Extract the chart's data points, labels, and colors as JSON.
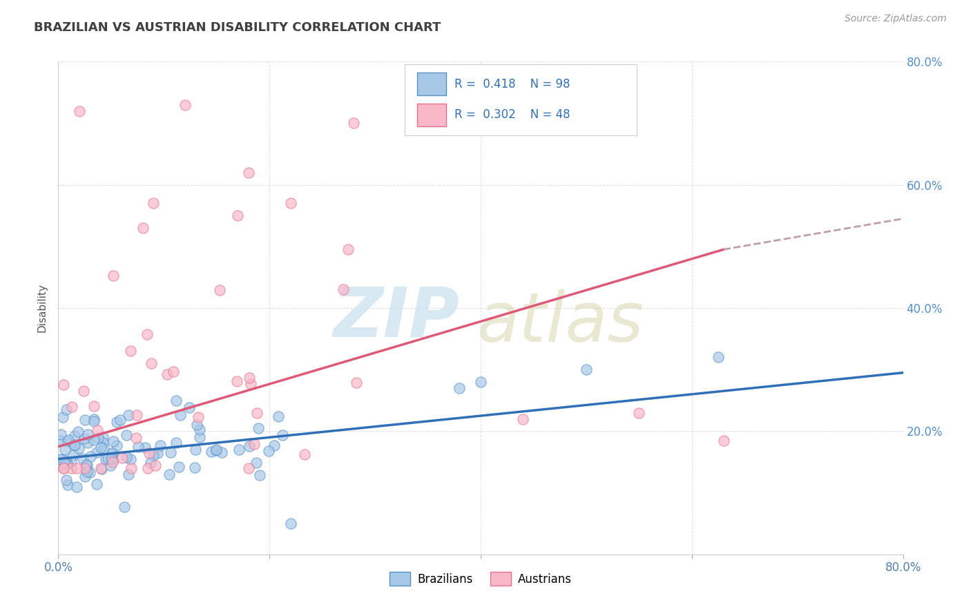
{
  "title": "BRAZILIAN VS AUSTRIAN DISABILITY CORRELATION CHART",
  "source_text": "Source: ZipAtlas.com",
  "ylabel": "Disability",
  "x_min": 0.0,
  "x_max": 0.8,
  "y_min": 0.0,
  "y_max": 0.8,
  "legend_R1": "0.418",
  "legend_N1": "98",
  "legend_R2": "0.302",
  "legend_N2": "48",
  "blue_dot_color": "#a8c8e8",
  "blue_dot_edge": "#5590c8",
  "pink_dot_color": "#f8b8c8",
  "pink_dot_edge": "#e87090",
  "blue_line_color": "#3070b8",
  "pink_line_color": "#e05878",
  "dash_line_color": "#c0a0a8",
  "watermark_zip_color": "#c8e0f0",
  "watermark_atlas_color": "#d8d8b0",
  "background_color": "#ffffff",
  "grid_color": "#e0e0e0",
  "right_tick_color": "#5590c8",
  "title_color": "#404040",
  "blue_line_start_y": 0.155,
  "blue_line_end_y": 0.295,
  "pink_line_start_y": 0.175,
  "pink_line_solid_end_x": 0.63,
  "pink_line_solid_end_y": 0.495,
  "pink_line_dash_end_y": 0.545
}
